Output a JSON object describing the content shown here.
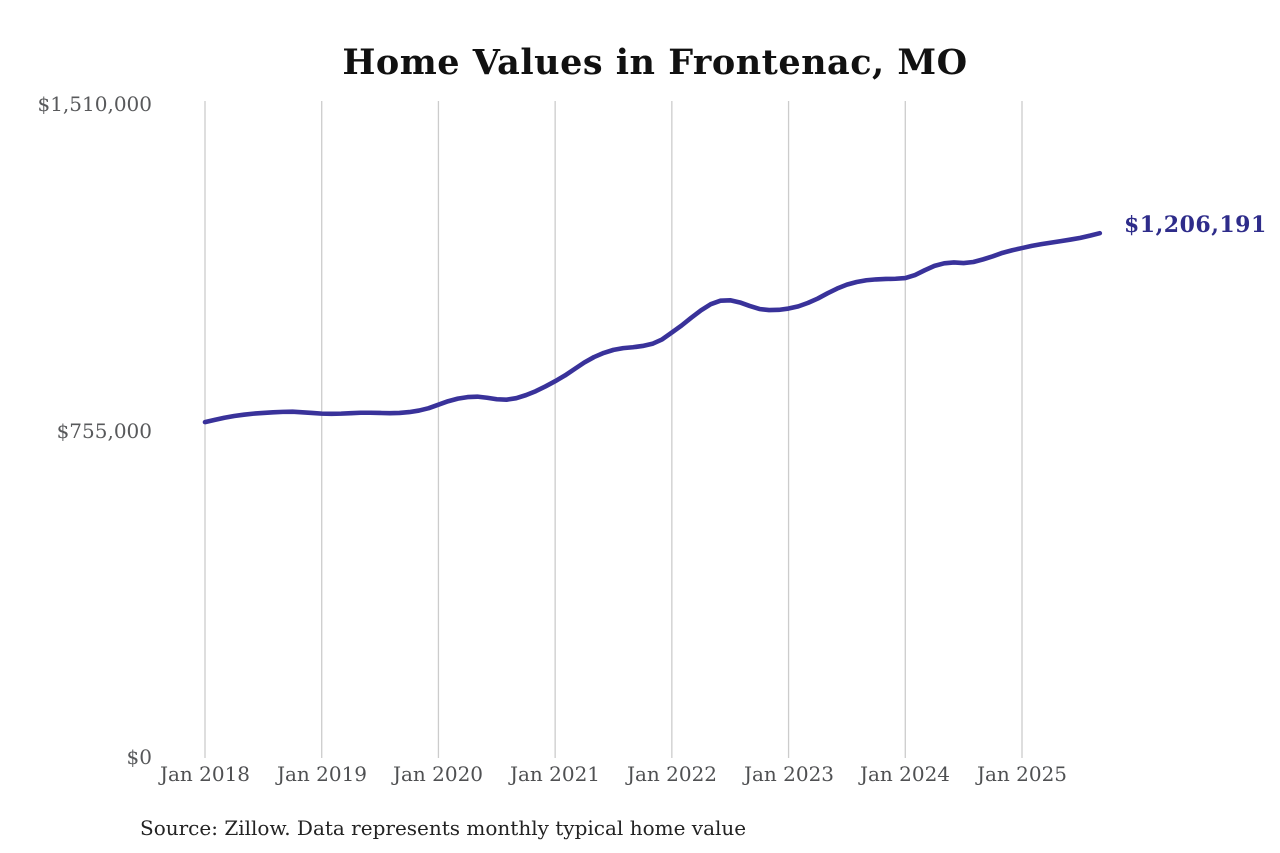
{
  "chart": {
    "title": "Home Values in Frontenac, MO",
    "end_label": "$1,206,191",
    "source": "Source: Zillow. Data represents monthly typical home value",
    "y_ticks": [
      "$1,510,000",
      "$755,000",
      "$0"
    ],
    "x_ticks": [
      "Jan 2018",
      "Jan 2019",
      "Jan 2020",
      "Jan 2021",
      "Jan 2022",
      "Jan 2023",
      "Jan 2024",
      "Jan 2025"
    ],
    "colors": {
      "line": "#39329a",
      "end_label": "#2e2c8a",
      "grid": "#cccccc",
      "y_axis_text": "#58595b",
      "x_axis_text": "#4f5052",
      "title_text": "#111111",
      "source_text": "#232323",
      "background": "#ffffff"
    }
  },
  "chart_data": {
    "type": "line",
    "title": "Home Values in Frontenac, MO",
    "unit": "USD",
    "frequency": "monthly",
    "x_start": "2018-01",
    "x_end": "2025-09",
    "ylim": [
      0,
      1510000
    ],
    "y_tick_values": [
      0,
      755000,
      1510000
    ],
    "x_tick_labels": [
      "Jan 2018",
      "Jan 2019",
      "Jan 2020",
      "Jan 2021",
      "Jan 2022",
      "Jan 2023",
      "Jan 2024",
      "Jan 2025"
    ],
    "grid": "vertical-only",
    "legend_position": "none",
    "last_value": 1206191,
    "last_value_label": "$1,206,191",
    "source": "Source: Zillow. Data represents monthly typical home value",
    "months": [
      "2018-01",
      "2018-02",
      "2018-03",
      "2018-04",
      "2018-05",
      "2018-06",
      "2018-07",
      "2018-08",
      "2018-09",
      "2018-10",
      "2018-11",
      "2018-12",
      "2019-01",
      "2019-02",
      "2019-03",
      "2019-04",
      "2019-05",
      "2019-06",
      "2019-07",
      "2019-08",
      "2019-09",
      "2019-10",
      "2019-11",
      "2019-12",
      "2020-01",
      "2020-02",
      "2020-03",
      "2020-04",
      "2020-05",
      "2020-06",
      "2020-07",
      "2020-08",
      "2020-09",
      "2020-10",
      "2020-11",
      "2020-12",
      "2021-01",
      "2021-02",
      "2021-03",
      "2021-04",
      "2021-05",
      "2021-06",
      "2021-07",
      "2021-08",
      "2021-09",
      "2021-10",
      "2021-11",
      "2021-12",
      "2022-01",
      "2022-02",
      "2022-03",
      "2022-04",
      "2022-05",
      "2022-06",
      "2022-07",
      "2022-08",
      "2022-09",
      "2022-10",
      "2022-11",
      "2022-12",
      "2023-01",
      "2023-02",
      "2023-03",
      "2023-04",
      "2023-05",
      "2023-06",
      "2023-07",
      "2023-08",
      "2023-09",
      "2023-10",
      "2023-11",
      "2023-12",
      "2024-01",
      "2024-02",
      "2024-03",
      "2024-04",
      "2024-05",
      "2024-06",
      "2024-07",
      "2024-08",
      "2024-09",
      "2024-10",
      "2024-11",
      "2024-12",
      "2025-01",
      "2025-02",
      "2025-03",
      "2025-04",
      "2025-05",
      "2025-06",
      "2025-07",
      "2025-08",
      "2025-09"
    ],
    "series": [
      {
        "name": "Typical home value",
        "values": [
          772000,
          777000,
          782000,
          786000,
          789000,
          791500,
          793000,
          794500,
          795500,
          796000,
          794500,
          793000,
          791500,
          791000,
          791500,
          792500,
          793500,
          793500,
          793000,
          792500,
          793000,
          795000,
          798500,
          804000,
          812000,
          820000,
          826000,
          829500,
          830500,
          828000,
          824500,
          823500,
          827000,
          834000,
          843000,
          854000,
          866000,
          879000,
          894000,
          909000,
          921500,
          931000,
          938000,
          942000,
          944000,
          947000,
          952000,
          962000,
          978000,
          994000,
          1012000,
          1029000,
          1043000,
          1051000,
          1052000,
          1047000,
          1039000,
          1032000,
          1029500,
          1030000,
          1033000,
          1038000,
          1046000,
          1056000,
          1068000,
          1079000,
          1088000,
          1094000,
          1098000,
          1100000,
          1101000,
          1101500,
          1103000,
          1110000,
          1121000,
          1131000,
          1137000,
          1139000,
          1137500,
          1140000,
          1146000,
          1153000,
          1161000,
          1167000,
          1172000,
          1177000,
          1181000,
          1184500,
          1188000,
          1191500,
          1195500,
          1200500,
          1206191
        ]
      }
    ]
  }
}
